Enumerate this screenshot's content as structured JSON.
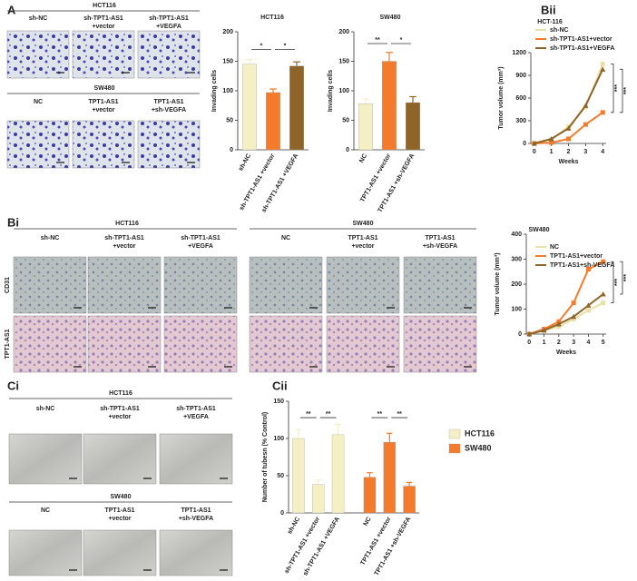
{
  "panels": {
    "A": {
      "label": "A",
      "groups": [
        {
          "title": "HCT116",
          "columns": [
            [
              "sh-NC"
            ],
            [
              "sh-TPT1-AS1",
              "+vector"
            ],
            [
              "sh-TPT1-AS1",
              "+VEGFA"
            ]
          ]
        },
        {
          "title": "SW480",
          "columns": [
            [
              "NC"
            ],
            [
              "TPT1-AS1",
              "+vector"
            ],
            [
              "TPT1-AS1",
              "+sh-VEGFA"
            ]
          ]
        }
      ]
    },
    "Bi": {
      "label": "Bi",
      "rows": [
        "CD31",
        "TPT1-AS1"
      ],
      "groups": [
        {
          "title": "HCT116",
          "columns": [
            [
              "sh-NC"
            ],
            [
              "sh-TPT1-AS1",
              "+vector"
            ],
            [
              "sh-TPT1-AS1",
              "+VEGFA"
            ]
          ]
        },
        {
          "title": "SW480",
          "columns": [
            [
              "NC"
            ],
            [
              "TPT1-AS1",
              "+vector"
            ],
            [
              "TPT1-AS1",
              "+sh-VEGFA"
            ]
          ]
        }
      ]
    },
    "Bii": {
      "label": "Bii"
    },
    "Ci": {
      "label": "Ci",
      "groups": [
        {
          "title": "HCT116",
          "columns": [
            [
              "sh-NC"
            ],
            [
              "sh-TPT1-AS1",
              "+vector"
            ],
            [
              "sh-TPT1-AS1",
              "+VEGFA"
            ]
          ]
        },
        {
          "title": "SW480",
          "columns": [
            [
              "NC"
            ],
            [
              "TPT1-AS1",
              "+vector"
            ],
            [
              "TPT1-AS1",
              "+sh-VEGFA"
            ]
          ]
        }
      ]
    },
    "Cii": {
      "label": "Cii"
    }
  },
  "chart_data": [
    {
      "type": "bar",
      "title": "HCT116",
      "y_label": "Invading cells",
      "categories": [
        "sh-NC",
        "sh-TPT1-AS1 +vector",
        "sh-TPT1-AS1 +VEGFA"
      ],
      "values": [
        145,
        97,
        142
      ],
      "errors": [
        8,
        6,
        7
      ],
      "colors": [
        "#f4efc4",
        "#f47a2c",
        "#8f6428"
      ],
      "ylim": [
        0,
        200
      ],
      "yticks": [
        0,
        50,
        100,
        150,
        200
      ],
      "annotations": [
        "*",
        "*"
      ]
    },
    {
      "type": "bar",
      "title": "SW480",
      "y_label": "Invading cells",
      "categories": [
        "NC",
        "TPT1-AS1 +vector",
        "TPT1-AS1 +sh-VEGFA"
      ],
      "values": [
        78,
        150,
        80
      ],
      "errors": [
        8,
        15,
        10
      ],
      "colors": [
        "#f4efc4",
        "#f47a2c",
        "#8f6428"
      ],
      "ylim": [
        0,
        200
      ],
      "yticks": [
        0,
        50,
        100,
        150,
        200
      ],
      "annotations": [
        "**",
        "*"
      ]
    },
    {
      "type": "line",
      "title": "HCT-116",
      "y_label": "Tumor volume (mm³)",
      "x_label": "Weeks",
      "x": [
        0,
        1,
        2,
        3,
        4
      ],
      "xlim": [
        -0.2,
        4.2
      ],
      "xticks": [
        0,
        1,
        2,
        3,
        4
      ],
      "ylim": [
        0,
        1200
      ],
      "yticks": [
        0,
        300,
        600,
        900,
        1200
      ],
      "series": [
        {
          "name": "sh-NC",
          "color": "#e9e1a8",
          "values": [
            0,
            50,
            220,
            480,
            1050
          ]
        },
        {
          "name": "sh-TPT1-AS1+vector",
          "color": "#f47a2c",
          "values": [
            0,
            10,
            60,
            250,
            410
          ]
        },
        {
          "name": "sh-TPT1-AS1+VEGFA",
          "color": "#8f6428",
          "values": [
            0,
            60,
            200,
            500,
            980
          ]
        }
      ],
      "annotations": [
        "***",
        "***"
      ]
    },
    {
      "type": "line",
      "title": "SW480",
      "y_label": "Tumor volume (mm³)",
      "x_label": "Weeks",
      "x": [
        0,
        1,
        2,
        3,
        4,
        5
      ],
      "xlim": [
        -0.2,
        5.2
      ],
      "xticks": [
        0,
        1,
        2,
        3,
        4,
        5
      ],
      "ylim": [
        0,
        400
      ],
      "yticks": [
        0,
        100,
        200,
        300,
        400
      ],
      "series": [
        {
          "name": "NC",
          "color": "#e9e1a8",
          "values": [
            0,
            15,
            30,
            60,
            95,
            125
          ]
        },
        {
          "name": "TPT1-AS1+vector",
          "color": "#f47a2c",
          "values": [
            0,
            20,
            50,
            125,
            260,
            290
          ]
        },
        {
          "name": "TPT1-AS1+sh-VEGFA",
          "color": "#8f6428",
          "values": [
            0,
            15,
            40,
            70,
            115,
            160
          ]
        }
      ],
      "annotations": [
        "***",
        "***"
      ]
    },
    {
      "type": "bar",
      "y_label": "Number of tubesn (% Control)",
      "categories": [
        "sh-NC",
        "sh-TPT1-AS1 +vector",
        "sh-TPT1-AS1 +VEGFA",
        "NC",
        "TPT1-AS1 +vector",
        "TPT1-AS1 +sh-VEGFA"
      ],
      "series": [
        {
          "name": "HCT116",
          "color": "#f4efc4",
          "values": [
            100,
            38,
            105,
            null,
            null,
            null
          ],
          "errors": [
            12,
            6,
            14,
            null,
            null,
            null
          ]
        },
        {
          "name": "SW480",
          "color": "#f47a2c",
          "values": [
            null,
            null,
            null,
            48,
            95,
            36
          ],
          "errors": [
            null,
            null,
            null,
            6,
            12,
            5
          ]
        }
      ],
      "ylim": [
        0,
        150
      ],
      "yticks": [
        0,
        50,
        100,
        150
      ],
      "annotations": [
        "**",
        "**",
        "**",
        "**"
      ]
    }
  ]
}
